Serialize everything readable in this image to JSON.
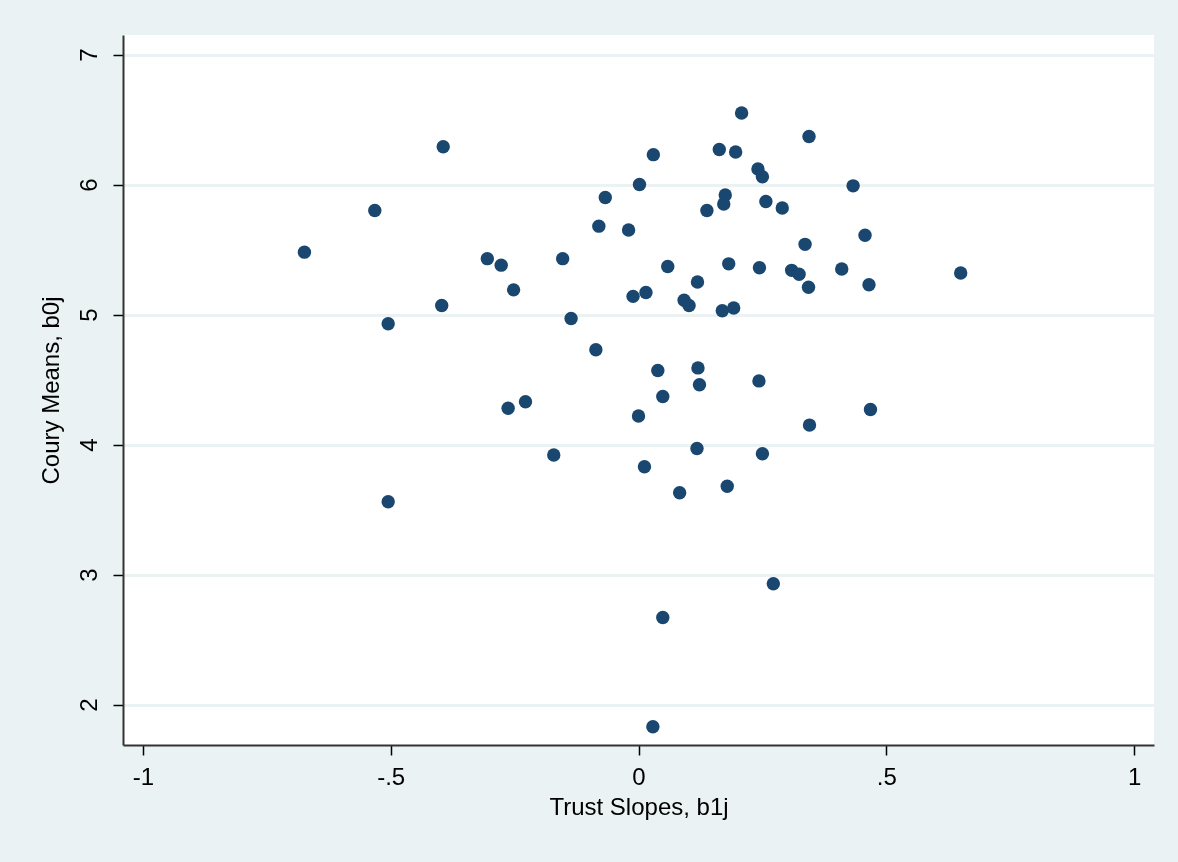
{
  "chart_data": {
    "type": "scatter",
    "xlabel": "Trust Slopes, b1j",
    "ylabel": "Coury Means, b0j",
    "x": [
      -0.674,
      -0.532,
      -0.505,
      -0.505,
      -0.394,
      -0.397,
      -0.305,
      -0.277,
      -0.252,
      -0.263,
      -0.228,
      -0.171,
      -0.153,
      -0.136,
      -0.086,
      -0.08,
      -0.067,
      -0.02,
      -0.011,
      0.002,
      0.0,
      0.012,
      0.015,
      0.03,
      0.029,
      0.039,
      0.049,
      0.049,
      0.059,
      0.083,
      0.092,
      0.102,
      0.118,
      0.119,
      0.12,
      0.123,
      0.138,
      0.163,
      0.169,
      0.172,
      0.175,
      0.179,
      0.182,
      0.192,
      0.196,
      0.208,
      0.241,
      0.243,
      0.244,
      0.25,
      0.25,
      0.257,
      0.272,
      0.29,
      0.309,
      0.324,
      0.336,
      0.343,
      0.344,
      0.345,
      0.41,
      0.433,
      0.457,
      0.465,
      0.468,
      0.65
    ],
    "series": [
      {
        "color": "#1a476f",
        "values": [
          5.48,
          5.8,
          4.93,
          3.56,
          6.29,
          5.07,
          5.43,
          5.38,
          5.19,
          4.28,
          4.33,
          3.92,
          5.43,
          4.97,
          4.73,
          5.68,
          5.9,
          5.65,
          5.14,
          6.0,
          4.22,
          3.83,
          5.17,
          6.23,
          1.83,
          4.57,
          4.37,
          2.67,
          5.37,
          3.63,
          5.11,
          5.07,
          3.97,
          5.25,
          4.59,
          4.46,
          5.8,
          6.27,
          5.03,
          5.85,
          5.92,
          3.68,
          5.39,
          5.05,
          6.25,
          6.55,
          6.12,
          4.49,
          5.36,
          6.06,
          3.93,
          5.87,
          2.93,
          5.82,
          5.34,
          5.31,
          5.54,
          5.21,
          6.37,
          4.15,
          5.35,
          5.99,
          5.61,
          5.23,
          4.27,
          5.32
        ]
      }
    ],
    "xlim": [
      -1.04,
      1.04
    ],
    "ylim": [
      1.69,
      7.15
    ],
    "xticks": [
      -1,
      {
        "value": -0.5,
        "label": "-.5"
      },
      0,
      {
        "value": 0.5,
        "label": ".5"
      },
      1
    ],
    "yticks": [
      2,
      3,
      4,
      5,
      6,
      7
    ],
    "grid": "y",
    "marker": "circle"
  }
}
